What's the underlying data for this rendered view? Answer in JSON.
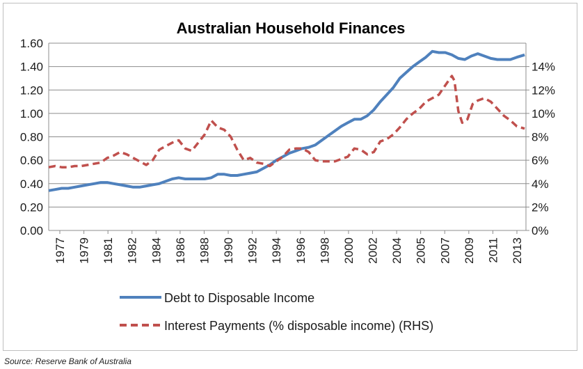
{
  "chart_data": {
    "type": "line",
    "title": "Australian Household Finances",
    "source": "Source: Reserve Bank of Australia",
    "y_left": {
      "min": 0,
      "max": 1.6,
      "step": 0.2,
      "ticks": [
        "0.00",
        "0.20",
        "0.40",
        "0.60",
        "0.80",
        "1.00",
        "1.20",
        "1.40",
        "1.60"
      ]
    },
    "y_right": {
      "min": 0,
      "max": 16,
      "step": 2,
      "ticks": [
        "0%",
        "2%",
        "4%",
        "6%",
        "8%",
        "10%",
        "12%",
        "14%"
      ]
    },
    "x_range": [
      1977,
      2013.7
    ],
    "x_ticks": [
      "1977",
      "1979",
      "1981",
      "1982",
      "1984",
      "1986",
      "1988",
      "1990",
      "1992",
      "1994",
      "1996",
      "1998",
      "2000",
      "2002",
      "2004",
      "2005",
      "2007",
      "2009",
      "2011",
      "2013"
    ],
    "grid": "horizontal",
    "legend_position": "bottom",
    "series": [
      {
        "name": "Debt to Disposable Income",
        "axis": "left",
        "color": "#4f81bd",
        "style": "solid",
        "points": [
          [
            1977.0,
            0.34
          ],
          [
            1977.5,
            0.35
          ],
          [
            1978.0,
            0.36
          ],
          [
            1978.5,
            0.36
          ],
          [
            1979.0,
            0.37
          ],
          [
            1979.5,
            0.38
          ],
          [
            1980.0,
            0.39
          ],
          [
            1980.5,
            0.4
          ],
          [
            1981.0,
            0.41
          ],
          [
            1981.5,
            0.41
          ],
          [
            1982.0,
            0.4
          ],
          [
            1982.5,
            0.39
          ],
          [
            1983.0,
            0.38
          ],
          [
            1983.5,
            0.37
          ],
          [
            1984.0,
            0.37
          ],
          [
            1984.5,
            0.38
          ],
          [
            1985.0,
            0.39
          ],
          [
            1985.5,
            0.4
          ],
          [
            1986.0,
            0.42
          ],
          [
            1986.5,
            0.44
          ],
          [
            1987.0,
            0.45
          ],
          [
            1987.5,
            0.44
          ],
          [
            1988.0,
            0.44
          ],
          [
            1988.5,
            0.44
          ],
          [
            1989.0,
            0.44
          ],
          [
            1989.5,
            0.45
          ],
          [
            1990.0,
            0.48
          ],
          [
            1990.5,
            0.48
          ],
          [
            1991.0,
            0.47
          ],
          [
            1991.5,
            0.47
          ],
          [
            1992.0,
            0.48
          ],
          [
            1992.5,
            0.49
          ],
          [
            1993.0,
            0.5
          ],
          [
            1993.5,
            0.53
          ],
          [
            1994.0,
            0.56
          ],
          [
            1994.5,
            0.6
          ],
          [
            1995.0,
            0.63
          ],
          [
            1995.5,
            0.66
          ],
          [
            1996.0,
            0.68
          ],
          [
            1996.5,
            0.7
          ],
          [
            1997.0,
            0.71
          ],
          [
            1997.5,
            0.73
          ],
          [
            1998.0,
            0.77
          ],
          [
            1998.5,
            0.81
          ],
          [
            1999.0,
            0.85
          ],
          [
            1999.5,
            0.89
          ],
          [
            2000.0,
            0.92
          ],
          [
            2000.5,
            0.95
          ],
          [
            2001.0,
            0.95
          ],
          [
            2001.5,
            0.98
          ],
          [
            2002.0,
            1.03
          ],
          [
            2002.5,
            1.1
          ],
          [
            2003.0,
            1.16
          ],
          [
            2003.5,
            1.22
          ],
          [
            2004.0,
            1.3
          ],
          [
            2004.5,
            1.35
          ],
          [
            2005.0,
            1.4
          ],
          [
            2005.5,
            1.44
          ],
          [
            2006.0,
            1.48
          ],
          [
            2006.5,
            1.53
          ],
          [
            2007.0,
            1.52
          ],
          [
            2007.5,
            1.52
          ],
          [
            2008.0,
            1.5
          ],
          [
            2008.5,
            1.47
          ],
          [
            2009.0,
            1.46
          ],
          [
            2009.5,
            1.49
          ],
          [
            2010.0,
            1.51
          ],
          [
            2010.5,
            1.49
          ],
          [
            2011.0,
            1.47
          ],
          [
            2011.5,
            1.46
          ],
          [
            2012.0,
            1.46
          ],
          [
            2012.5,
            1.46
          ],
          [
            2013.0,
            1.48
          ],
          [
            2013.6,
            1.5
          ]
        ]
      },
      {
        "name": "Interest Payments (% disposable income) (RHS)",
        "axis": "right",
        "color": "#c0504d",
        "style": "dashed",
        "points": [
          [
            1977.0,
            5.4
          ],
          [
            1977.5,
            5.5
          ],
          [
            1978.0,
            5.4
          ],
          [
            1978.5,
            5.4
          ],
          [
            1979.0,
            5.5
          ],
          [
            1979.5,
            5.5
          ],
          [
            1980.0,
            5.6
          ],
          [
            1980.5,
            5.7
          ],
          [
            1981.0,
            5.8
          ],
          [
            1981.5,
            6.2
          ],
          [
            1982.0,
            6.4
          ],
          [
            1982.5,
            6.7
          ],
          [
            1983.0,
            6.5
          ],
          [
            1983.5,
            6.2
          ],
          [
            1984.0,
            5.9
          ],
          [
            1984.5,
            5.6
          ],
          [
            1985.0,
            6.0
          ],
          [
            1985.5,
            6.9
          ],
          [
            1986.0,
            7.2
          ],
          [
            1986.5,
            7.5
          ],
          [
            1987.0,
            7.7
          ],
          [
            1987.5,
            7.0
          ],
          [
            1988.0,
            6.8
          ],
          [
            1988.5,
            7.5
          ],
          [
            1989.0,
            8.2
          ],
          [
            1989.5,
            9.4
          ],
          [
            1990.0,
            8.8
          ],
          [
            1990.5,
            8.6
          ],
          [
            1991.0,
            8.0
          ],
          [
            1991.5,
            6.9
          ],
          [
            1992.0,
            6.0
          ],
          [
            1992.5,
            6.2
          ],
          [
            1993.0,
            5.8
          ],
          [
            1993.5,
            5.7
          ],
          [
            1994.0,
            5.5
          ],
          [
            1994.5,
            5.9
          ],
          [
            1995.0,
            6.3
          ],
          [
            1995.5,
            6.9
          ],
          [
            1996.0,
            7.0
          ],
          [
            1996.5,
            7.0
          ],
          [
            1997.0,
            6.7
          ],
          [
            1997.5,
            6.0
          ],
          [
            1998.0,
            5.9
          ],
          [
            1998.5,
            5.9
          ],
          [
            1999.0,
            5.9
          ],
          [
            1999.5,
            6.1
          ],
          [
            2000.0,
            6.3
          ],
          [
            2000.5,
            7.0
          ],
          [
            2001.0,
            6.9
          ],
          [
            2001.5,
            6.5
          ],
          [
            2002.0,
            6.7
          ],
          [
            2002.5,
            7.6
          ],
          [
            2003.0,
            7.8
          ],
          [
            2003.5,
            8.2
          ],
          [
            2004.0,
            8.8
          ],
          [
            2004.5,
            9.5
          ],
          [
            2005.0,
            10.0
          ],
          [
            2005.5,
            10.4
          ],
          [
            2006.0,
            11.0
          ],
          [
            2006.5,
            11.3
          ],
          [
            2007.0,
            11.6
          ],
          [
            2007.5,
            12.4
          ],
          [
            2008.0,
            13.2
          ],
          [
            2008.2,
            12.8
          ],
          [
            2008.5,
            10.2
          ],
          [
            2008.8,
            9.2
          ],
          [
            2009.2,
            9.5
          ],
          [
            2009.6,
            10.8
          ],
          [
            2010.0,
            11.1
          ],
          [
            2010.5,
            11.3
          ],
          [
            2011.0,
            11.0
          ],
          [
            2011.5,
            10.4
          ],
          [
            2012.0,
            9.8
          ],
          [
            2012.5,
            9.4
          ],
          [
            2013.0,
            8.9
          ],
          [
            2013.6,
            8.7
          ]
        ]
      }
    ]
  }
}
